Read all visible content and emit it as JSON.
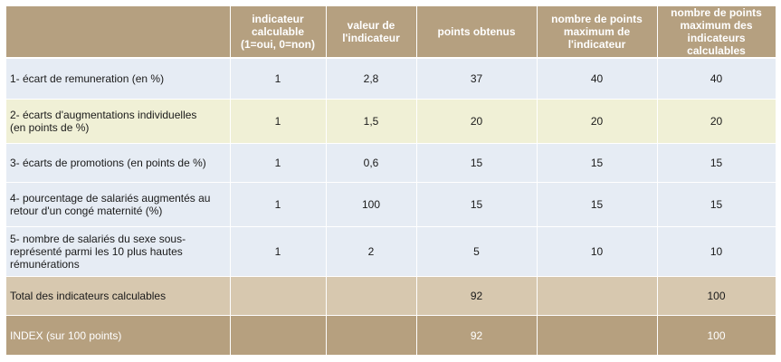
{
  "headers": [
    "",
    "indicateur calculable (1=oui, 0=non)",
    "valeur de l'indicateur",
    "points obtenus",
    "nombre de points maximum de l'indicateur",
    "nombre de points maximum des indicateurs calculables"
  ],
  "rows": [
    {
      "label_lines": [
        "1- écart de remuneration (en %)"
      ],
      "values": [
        "1",
        "2,8",
        "37",
        "40",
        "40"
      ]
    },
    {
      "label_lines": [
        "2- écarts d'augmentations individuelles",
        "(en points de %)"
      ],
      "values": [
        "1",
        "1,5",
        "20",
        "20",
        "20"
      ]
    },
    {
      "label_lines": [
        "3- écarts de promotions (en points de %)"
      ],
      "values": [
        "1",
        "0,6",
        "15",
        "15",
        "15"
      ]
    },
    {
      "label_lines": [
        "4- pourcentage de salariés augmentés au",
        "retour d'un congé maternité (%)"
      ],
      "values": [
        "1",
        "100",
        "15",
        "15",
        "15"
      ]
    },
    {
      "label_lines": [
        "5- nombre de salariés du sexe sous-",
        "représenté parmi les 10 plus hautes",
        "rémunérations"
      ],
      "values": [
        "1",
        "2",
        "5",
        "10",
        "10"
      ]
    }
  ],
  "total": {
    "label": "Total des indicateurs calculables",
    "values": [
      "",
      "",
      "92",
      "",
      "100"
    ]
  },
  "index": {
    "label": "INDEX (sur 100 points)",
    "values": [
      "",
      "",
      "92",
      "",
      "100"
    ]
  }
}
